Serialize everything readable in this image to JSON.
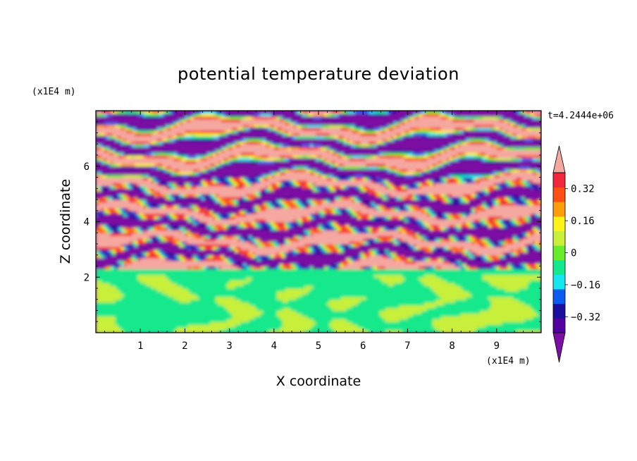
{
  "chart_data": {
    "type": "heatmap",
    "title": "potential temperature deviation",
    "xlabel": "X coordinate",
    "ylabel": "Z coordinate",
    "x_unit": "(x1E4 m)",
    "y_unit": "(x1E4 m)",
    "time_label": "t=4.2444e+06",
    "xlim": [
      0,
      10
    ],
    "ylim": [
      0,
      8
    ],
    "x_ticks": [
      "1",
      "2",
      "3",
      "4",
      "5",
      "6",
      "7",
      "8",
      "9"
    ],
    "x_tick_values": [
      1,
      2,
      3,
      4,
      5,
      6,
      7,
      8,
      9
    ],
    "y_ticks": [
      "2",
      "4",
      "6"
    ],
    "y_tick_values": [
      2,
      4,
      6
    ],
    "colorbar": {
      "levels": [
        -0.48,
        -0.4,
        -0.32,
        -0.24,
        -0.16,
        -0.08,
        0,
        0.08,
        0.16,
        0.24,
        0.32,
        0.4,
        0.48
      ],
      "colors": [
        "#7b0fa3",
        "#5200a0",
        "#1a0f9e",
        "#0a5cf0",
        "#14e6f0",
        "#13e88c",
        "#66ee2c",
        "#c8f03a",
        "#fff31a",
        "#ff9e0a",
        "#ff5014",
        "#f0283c",
        "#f5a8a0"
      ],
      "tick_labels": [
        "0.32",
        "0.16",
        "0",
        "−0.16",
        "−0.32"
      ],
      "tick_values": [
        0.32,
        0.16,
        0,
        -0.16,
        -0.32
      ],
      "extend": "both"
    },
    "regions": [
      {
        "z_range": [
          0,
          2.1
        ],
        "dominant_values": [
          -0.04,
          0.04
        ],
        "note": "green mixed layer"
      },
      {
        "z_range": [
          2.1,
          2.3
        ],
        "dominant_values": [
          -0.04
        ],
        "note": "cyan-green transition band"
      },
      {
        "z_range": [
          2.3,
          8
        ],
        "dominant_values": [
          -0.48,
          0.48
        ],
        "note": "alternating purple and pink wave layers"
      }
    ]
  }
}
